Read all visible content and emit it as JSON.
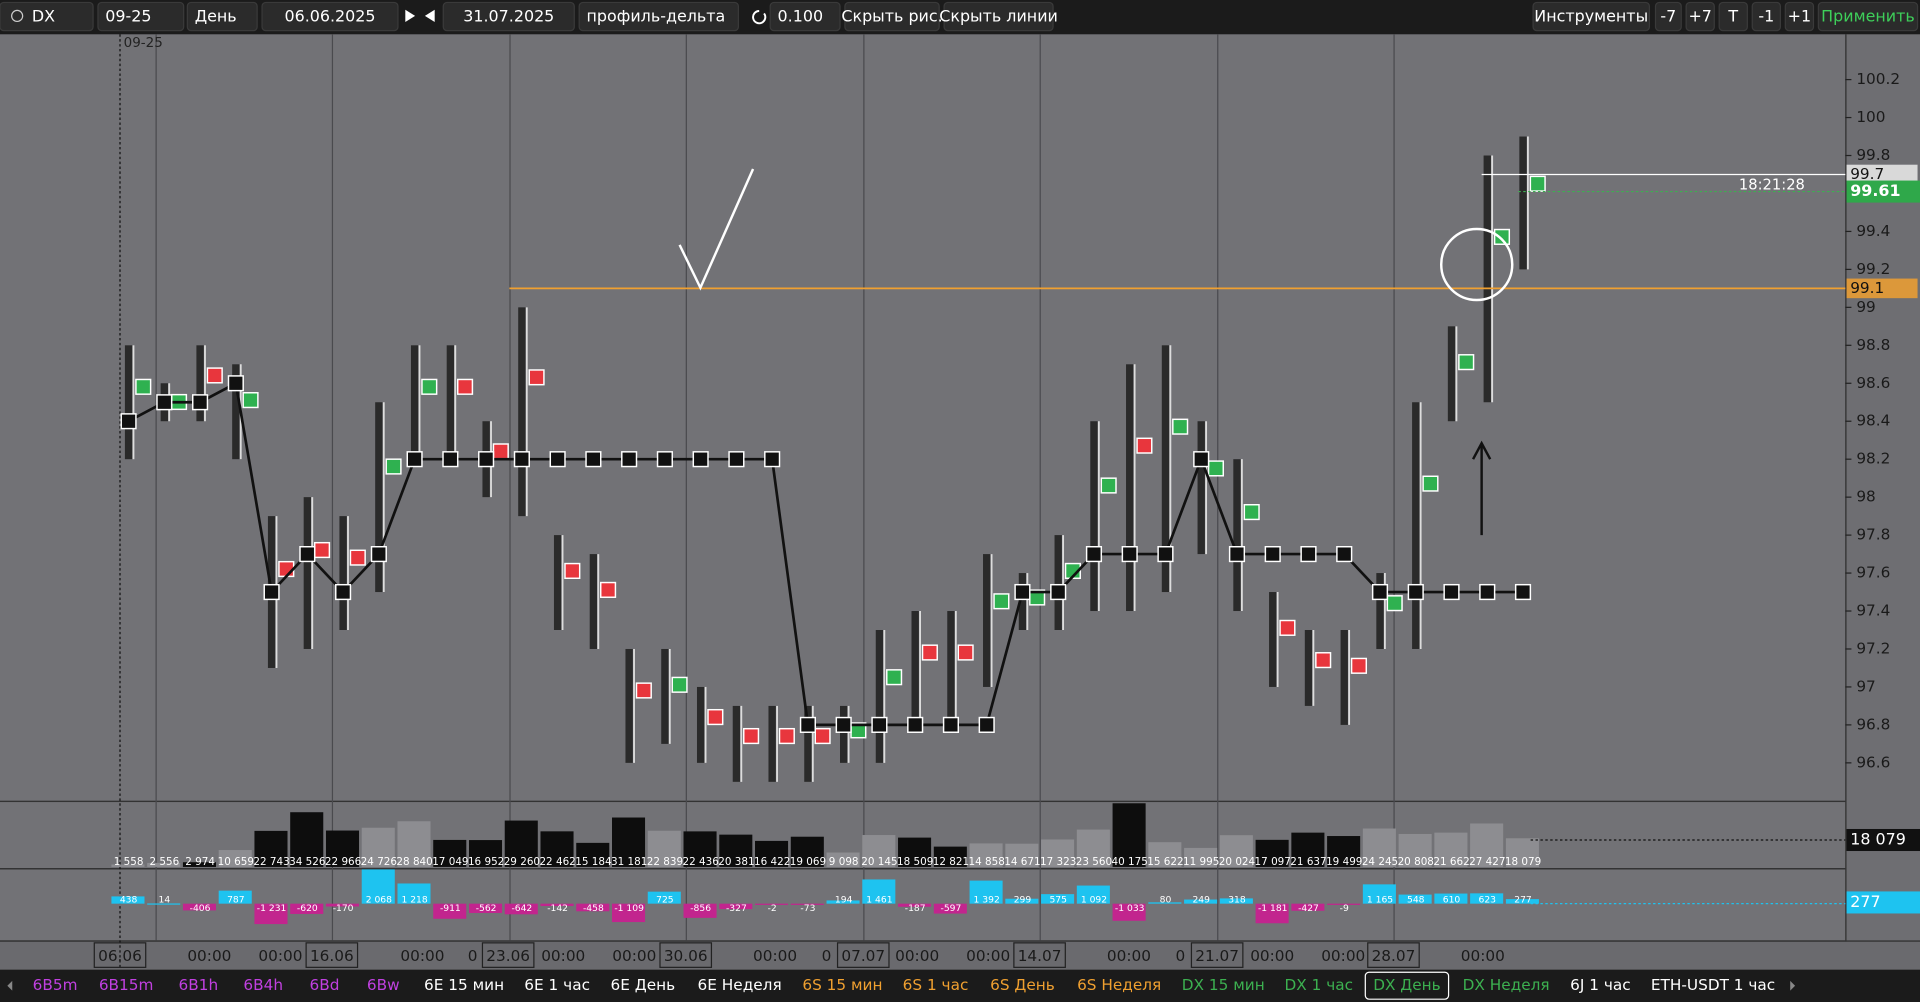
{
  "toolbar": {
    "symbol": "DX",
    "contract": "09-25",
    "period": "День",
    "date_from": "06.06.2025",
    "date_to": "31.07.2025",
    "template": "профиль-дельта",
    "step": "0.100",
    "hide_drawings": "Скрыть рис.",
    "hide_lines": "Скрыть линии",
    "tools": "Инструменты",
    "shift_buttons": [
      "-7",
      "+7",
      "T",
      "-1",
      "+1"
    ],
    "apply": "Применить"
  },
  "chart": {
    "contract_label": "09-25",
    "price_ticks": [
      100.2,
      100,
      99.8,
      99.4,
      99.2,
      99,
      98.8,
      98.6,
      98.4,
      98.2,
      98,
      97.8,
      97.6,
      97.4,
      97.2,
      97,
      96.8,
      96.6
    ],
    "last_line": 99.7,
    "timer": "18:21:28",
    "last_price": 99.61,
    "level": 99.1,
    "days": {
      "high": [
        98.8,
        98.6,
        98.8,
        98.7,
        97.9,
        98,
        97.9,
        98.5,
        98.8,
        98.8,
        98.4,
        99,
        97.8,
        97.7,
        97.2,
        97.2,
        97,
        96.9,
        96.9,
        96.9,
        96.9,
        97.3,
        97.4,
        97.4,
        97.7,
        97.6,
        97.8,
        98.4,
        98.7,
        98.8,
        98.4,
        98.2,
        97.5,
        97.3,
        97.3,
        97.6,
        98.5,
        98.9,
        99.8,
        99.9
      ],
      "low": [
        98.2,
        98.4,
        98.4,
        98.2,
        97.1,
        97.2,
        97.3,
        97.5,
        98.2,
        98.2,
        98,
        97.9,
        97.3,
        97.2,
        96.6,
        96.7,
        96.6,
        96.5,
        96.5,
        96.5,
        96.6,
        96.6,
        96.8,
        96.8,
        97,
        97.3,
        97.3,
        97.4,
        97.4,
        97.5,
        97.7,
        97.4,
        97,
        96.9,
        96.8,
        97.2,
        97.2,
        98.4,
        98.5,
        99.2
      ],
      "profile_line": [
        98.4,
        98.5,
        98.5,
        98.6,
        97.5,
        97.7,
        97.5,
        97.7,
        98.2,
        98.2,
        98.2,
        98.2,
        98.2,
        98.2,
        98.2,
        98.2,
        98.2,
        98.2,
        98.2,
        96.8,
        96.8,
        96.8,
        96.8,
        96.8,
        96.8,
        97.5,
        97.5,
        97.7,
        97.7,
        97.7,
        98.2,
        97.7,
        97.7,
        97.7,
        97.7,
        97.5,
        97.5,
        97.5,
        97.5,
        97.5
      ]
    },
    "volume": {
      "values": [
        1558,
        2556,
        2974,
        10659,
        22743,
        34526,
        22966,
        24726,
        28840,
        17049,
        16952,
        29260,
        22462,
        15184,
        31181,
        22839,
        22436,
        20381,
        16422,
        19069,
        9098,
        20145,
        18509,
        12821,
        14858,
        14671,
        17323,
        23560,
        40175,
        15622,
        11995,
        20024,
        17097,
        21637,
        19499,
        24245,
        20808,
        21662,
        27427,
        18079
      ],
      "value_labels": [
        "1 558",
        "2 556",
        "2 974",
        "10 659",
        "22 743",
        "34 526",
        "22 966",
        "24 726",
        "28 840",
        "17 049",
        "16 952",
        "29 260",
        "22 462",
        "15 184",
        "31 181",
        "22 839",
        "22 436",
        "20 381",
        "16 422",
        "19 069",
        "9 098",
        "20 145",
        "18 509",
        "12 821",
        "14 858",
        "14 671",
        "17 323",
        "23 560",
        "40 175",
        "15 622",
        "11 995",
        "20 024",
        "17 097",
        "21 637",
        "19 499",
        "24 245",
        "20 808",
        "21 662",
        "27 427",
        "18 079"
      ]
    },
    "delta": {
      "values": [
        438,
        14,
        -406,
        787,
        -1231,
        -620,
        -170,
        2068,
        1218,
        -911,
        -562,
        -642,
        -142,
        -458,
        -1109,
        725,
        -856,
        -327,
        -2,
        -73,
        194,
        1461,
        -187,
        -597,
        1392,
        299,
        575,
        1092,
        -1033,
        80,
        249,
        318,
        -1181,
        -427,
        -9,
        1165,
        548,
        610,
        623,
        277
      ],
      "value_labels": [
        "438",
        "14",
        "-406",
        "787",
        "-1 231",
        "-620",
        "-170",
        "2 068",
        "1 218",
        "-911",
        "-562",
        "-642",
        "-142",
        "-458",
        "-1 109",
        "725",
        "-856",
        "-327",
        "-2",
        "-73",
        "194",
        "1 461",
        "-187",
        "-597",
        "1 392",
        "299",
        "575",
        "1 092",
        "-1 033",
        "80",
        "249",
        "318",
        "-1 181",
        "-427",
        "-9",
        "1 165",
        "548",
        "610",
        "623",
        "277"
      ]
    },
    "time_labels": [
      "06.06",
      "00:00",
      "00:00",
      "16.06",
      "00:00",
      "0",
      "23.06",
      "00:00",
      "00:00",
      "30.06",
      "00:00",
      "0",
      "07.07",
      "00:00",
      "00:00",
      "14.07",
      "00:00",
      "0",
      "21.07",
      "00:00",
      "00:00",
      "28.07",
      "00:00"
    ]
  },
  "tabs": [
    {
      "label": "6B5m",
      "color": "#c040e0"
    },
    {
      "label": "6B15m",
      "color": "#c040e0"
    },
    {
      "label": "6B1h",
      "color": "#c040e0"
    },
    {
      "label": "6B4h",
      "color": "#c040e0"
    },
    {
      "label": "6Bd",
      "color": "#c040e0"
    },
    {
      "label": "6Bw",
      "color": "#c040e0"
    },
    {
      "label": "6E 15 мин",
      "color": "#ffffff"
    },
    {
      "label": "6E 1 час",
      "color": "#ffffff"
    },
    {
      "label": "6E День",
      "color": "#ffffff"
    },
    {
      "label": "6E Неделя",
      "color": "#ffffff"
    },
    {
      "label": "6S 15 мин",
      "color": "#f0a030"
    },
    {
      "label": "6S 1 час",
      "color": "#f0a030"
    },
    {
      "label": "6S День",
      "color": "#f0a030"
    },
    {
      "label": "6S Неделя",
      "color": "#f0a030"
    },
    {
      "label": "DX 15 мин",
      "color": "#3cb050"
    },
    {
      "label": "DX 1 час",
      "color": "#3cb050"
    },
    {
      "label": "DX День",
      "color": "#3cb050"
    },
    {
      "label": "DX Неделя",
      "color": "#3cb050"
    },
    {
      "label": "6J 1 час",
      "color": "#ffffff"
    },
    {
      "label": "ETH-USDT 1 час",
      "color": "#ffffff"
    }
  ],
  "active_tab": 16
}
